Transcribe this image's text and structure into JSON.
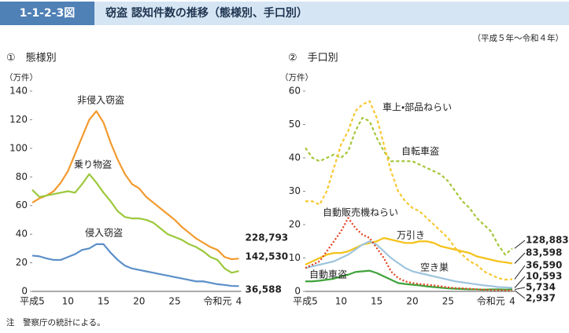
{
  "header": {
    "figure_no": "1-1-2-3図",
    "title": "窃盗 認知件数の推移（態様別、手口別）"
  },
  "period_note": "（平成５年～令和４年）",
  "footnote": "注　警察庁の統計による。",
  "chart_data": [
    {
      "type": "line",
      "title": "①　態様別",
      "y_label": "（万件）",
      "categories": [
        "平成5",
        null,
        null,
        null,
        null,
        "10",
        null,
        null,
        null,
        null,
        "15",
        null,
        null,
        null,
        null,
        "20",
        null,
        null,
        null,
        null,
        "25",
        null,
        null,
        null,
        null,
        null,
        "令和元",
        null,
        null,
        "4"
      ],
      "ylim": [
        0,
        140
      ],
      "yticks": [
        0,
        20,
        40,
        60,
        80,
        100,
        120,
        140
      ],
      "series": [
        {
          "name": "非侵入窃盗",
          "color": "#f39a2e",
          "line_style": "solid",
          "values": [
            62,
            65,
            67,
            70,
            76,
            84,
            96,
            108,
            120,
            126,
            118,
            104,
            92,
            82,
            75,
            72,
            66,
            62,
            58,
            54,
            50,
            45,
            41,
            37,
            34,
            31,
            29,
            24,
            22.5,
            22.8793
          ],
          "value_labels": [
            null,
            null,
            null,
            null,
            null,
            null,
            null,
            null,
            null,
            null,
            null,
            null,
            null,
            null,
            null,
            null,
            null,
            null,
            null,
            null,
            null,
            null,
            null,
            null,
            null,
            null,
            null,
            null,
            null,
            "228,793"
          ]
        },
        {
          "name": "乗り物盗",
          "color": "#9cc83c",
          "line_style": "solid",
          "values": [
            71,
            66,
            67,
            68,
            69,
            70,
            69,
            75,
            82,
            76,
            69,
            63,
            56,
            52,
            51,
            51,
            50,
            48,
            44,
            40,
            38,
            36,
            33,
            31,
            28,
            24,
            22,
            16,
            13,
            14.253
          ],
          "value_labels": [
            null,
            null,
            null,
            null,
            null,
            null,
            null,
            null,
            null,
            null,
            null,
            null,
            null,
            null,
            null,
            null,
            null,
            null,
            null,
            null,
            null,
            null,
            null,
            null,
            null,
            null,
            null,
            null,
            null,
            "142,530"
          ]
        },
        {
          "name": "侵入窃盗",
          "color": "#5b8fc8",
          "line_style": "solid",
          "values": [
            25,
            24.5,
            23,
            22,
            22,
            24,
            26,
            29,
            30,
            33,
            33,
            27,
            22,
            18,
            16,
            15,
            14,
            13,
            12,
            11,
            10,
            9,
            8,
            7,
            7,
            6,
            5,
            4.5,
            3.8,
            3.6588
          ],
          "value_labels": [
            null,
            null,
            null,
            null,
            null,
            null,
            null,
            null,
            null,
            null,
            null,
            null,
            null,
            null,
            null,
            null,
            null,
            null,
            null,
            null,
            null,
            null,
            null,
            null,
            null,
            null,
            null,
            null,
            null,
            "36,588"
          ]
        }
      ]
    },
    {
      "type": "line",
      "title": "②　手口別",
      "y_label": "（万件）",
      "categories": [
        "平成5",
        null,
        null,
        null,
        null,
        "10",
        null,
        null,
        null,
        null,
        "15",
        null,
        null,
        null,
        null,
        "20",
        null,
        null,
        null,
        null,
        "25",
        null,
        null,
        null,
        null,
        null,
        "令和元",
        null,
        null,
        "4"
      ],
      "ylim": [
        0,
        60
      ],
      "yticks": [
        0,
        10,
        20,
        30,
        40,
        50,
        60
      ],
      "series": [
        {
          "name": "自転車盗",
          "color": "#a5c63a",
          "line_style": "dashed",
          "values": [
            43,
            40,
            39,
            40,
            41,
            40,
            42,
            48,
            52,
            51,
            46,
            42,
            39,
            39,
            39,
            39,
            38,
            37,
            36,
            35,
            33,
            30,
            27,
            25,
            22,
            20,
            18,
            14,
            11,
            12.8883
          ],
          "value_labels": [
            null,
            null,
            null,
            null,
            null,
            null,
            null,
            null,
            null,
            null,
            null,
            null,
            null,
            null,
            null,
            null,
            null,
            null,
            null,
            null,
            null,
            null,
            null,
            null,
            null,
            null,
            null,
            null,
            null,
            "128,883"
          ]
        },
        {
          "name": "万引き",
          "color": "#f5c21b",
          "line_style": "solid",
          "values": [
            8,
            9,
            10,
            11,
            11.5,
            11.5,
            12,
            13,
            14,
            14.5,
            15,
            16,
            15.5,
            15,
            14.5,
            14.5,
            15,
            15,
            14.5,
            13.5,
            13,
            12.5,
            12,
            11.5,
            10.5,
            10,
            9.5,
            9,
            8.7,
            8.3598
          ],
          "value_labels": [
            null,
            null,
            null,
            null,
            null,
            null,
            null,
            null,
            null,
            null,
            null,
            null,
            null,
            null,
            null,
            null,
            null,
            null,
            null,
            null,
            null,
            null,
            null,
            null,
            null,
            null,
            null,
            null,
            null,
            "83,598"
          ]
        },
        {
          "name": "車上・部品ねらい",
          "color": "#f7c832",
          "line_style": "dashed",
          "values": [
            27,
            27,
            26,
            30,
            37,
            44,
            48,
            54,
            56,
            57,
            52,
            44,
            36,
            30,
            27,
            25,
            24,
            22,
            20,
            18,
            16,
            13,
            11,
            9,
            8,
            6,
            5,
            4,
            3.5,
            3.659
          ],
          "value_labels": [
            null,
            null,
            null,
            null,
            null,
            null,
            null,
            null,
            null,
            null,
            null,
            null,
            null,
            null,
            null,
            null,
            null,
            null,
            null,
            null,
            null,
            null,
            null,
            null,
            null,
            null,
            null,
            null,
            null,
            "36,590"
          ]
        },
        {
          "name": "空き巣",
          "color": "#9fc5de",
          "line_style": "solid",
          "values": [
            7,
            7.5,
            8,
            8.5,
            9,
            10,
            11,
            12.5,
            14,
            15,
            14,
            12,
            10,
            8.5,
            7,
            6,
            5.5,
            5,
            4.5,
            4,
            3.5,
            3,
            2.7,
            2.4,
            2.1,
            1.8,
            1.6,
            1.3,
            1.2,
            1.0593
          ],
          "value_labels": [
            null,
            null,
            null,
            null,
            null,
            null,
            null,
            null,
            null,
            null,
            null,
            null,
            null,
            null,
            null,
            null,
            null,
            null,
            null,
            null,
            null,
            null,
            null,
            null,
            null,
            null,
            null,
            null,
            null,
            "10,593"
          ]
        },
        {
          "name": "自動車盗",
          "color": "#3fa23a",
          "line_style": "solid",
          "values": [
            3,
            3,
            3.2,
            3.5,
            3.8,
            4.5,
            5,
            5.8,
            6,
            6.2,
            5.5,
            4.5,
            3.5,
            2.5,
            2.2,
            2,
            1.8,
            1.5,
            1.3,
            1.1,
            0.9,
            0.8,
            0.7,
            0.6,
            0.6,
            0.5,
            0.6,
            0.6,
            0.55,
            0.5734
          ],
          "value_labels": [
            null,
            null,
            null,
            null,
            null,
            null,
            null,
            null,
            null,
            null,
            null,
            null,
            null,
            null,
            null,
            null,
            null,
            null,
            null,
            null,
            null,
            null,
            null,
            null,
            null,
            null,
            null,
            null,
            null,
            "5,734"
          ]
        },
        {
          "name": "自動販売機ねらい",
          "color": "#e2401c",
          "line_style": "dotted",
          "values": [
            7,
            8,
            9,
            12,
            15,
            18,
            22,
            19,
            17,
            16,
            13,
            10,
            6,
            4,
            3,
            2.5,
            2.2,
            2,
            1.8,
            1.5,
            1.2,
            1,
            0.9,
            0.8,
            0.6,
            0.5,
            0.4,
            0.35,
            0.3,
            0.2937
          ],
          "value_labels": [
            null,
            null,
            null,
            null,
            null,
            null,
            null,
            null,
            null,
            null,
            null,
            null,
            null,
            null,
            null,
            null,
            null,
            null,
            null,
            null,
            null,
            null,
            null,
            null,
            null,
            null,
            null,
            null,
            null,
            "2,937"
          ]
        }
      ]
    }
  ]
}
